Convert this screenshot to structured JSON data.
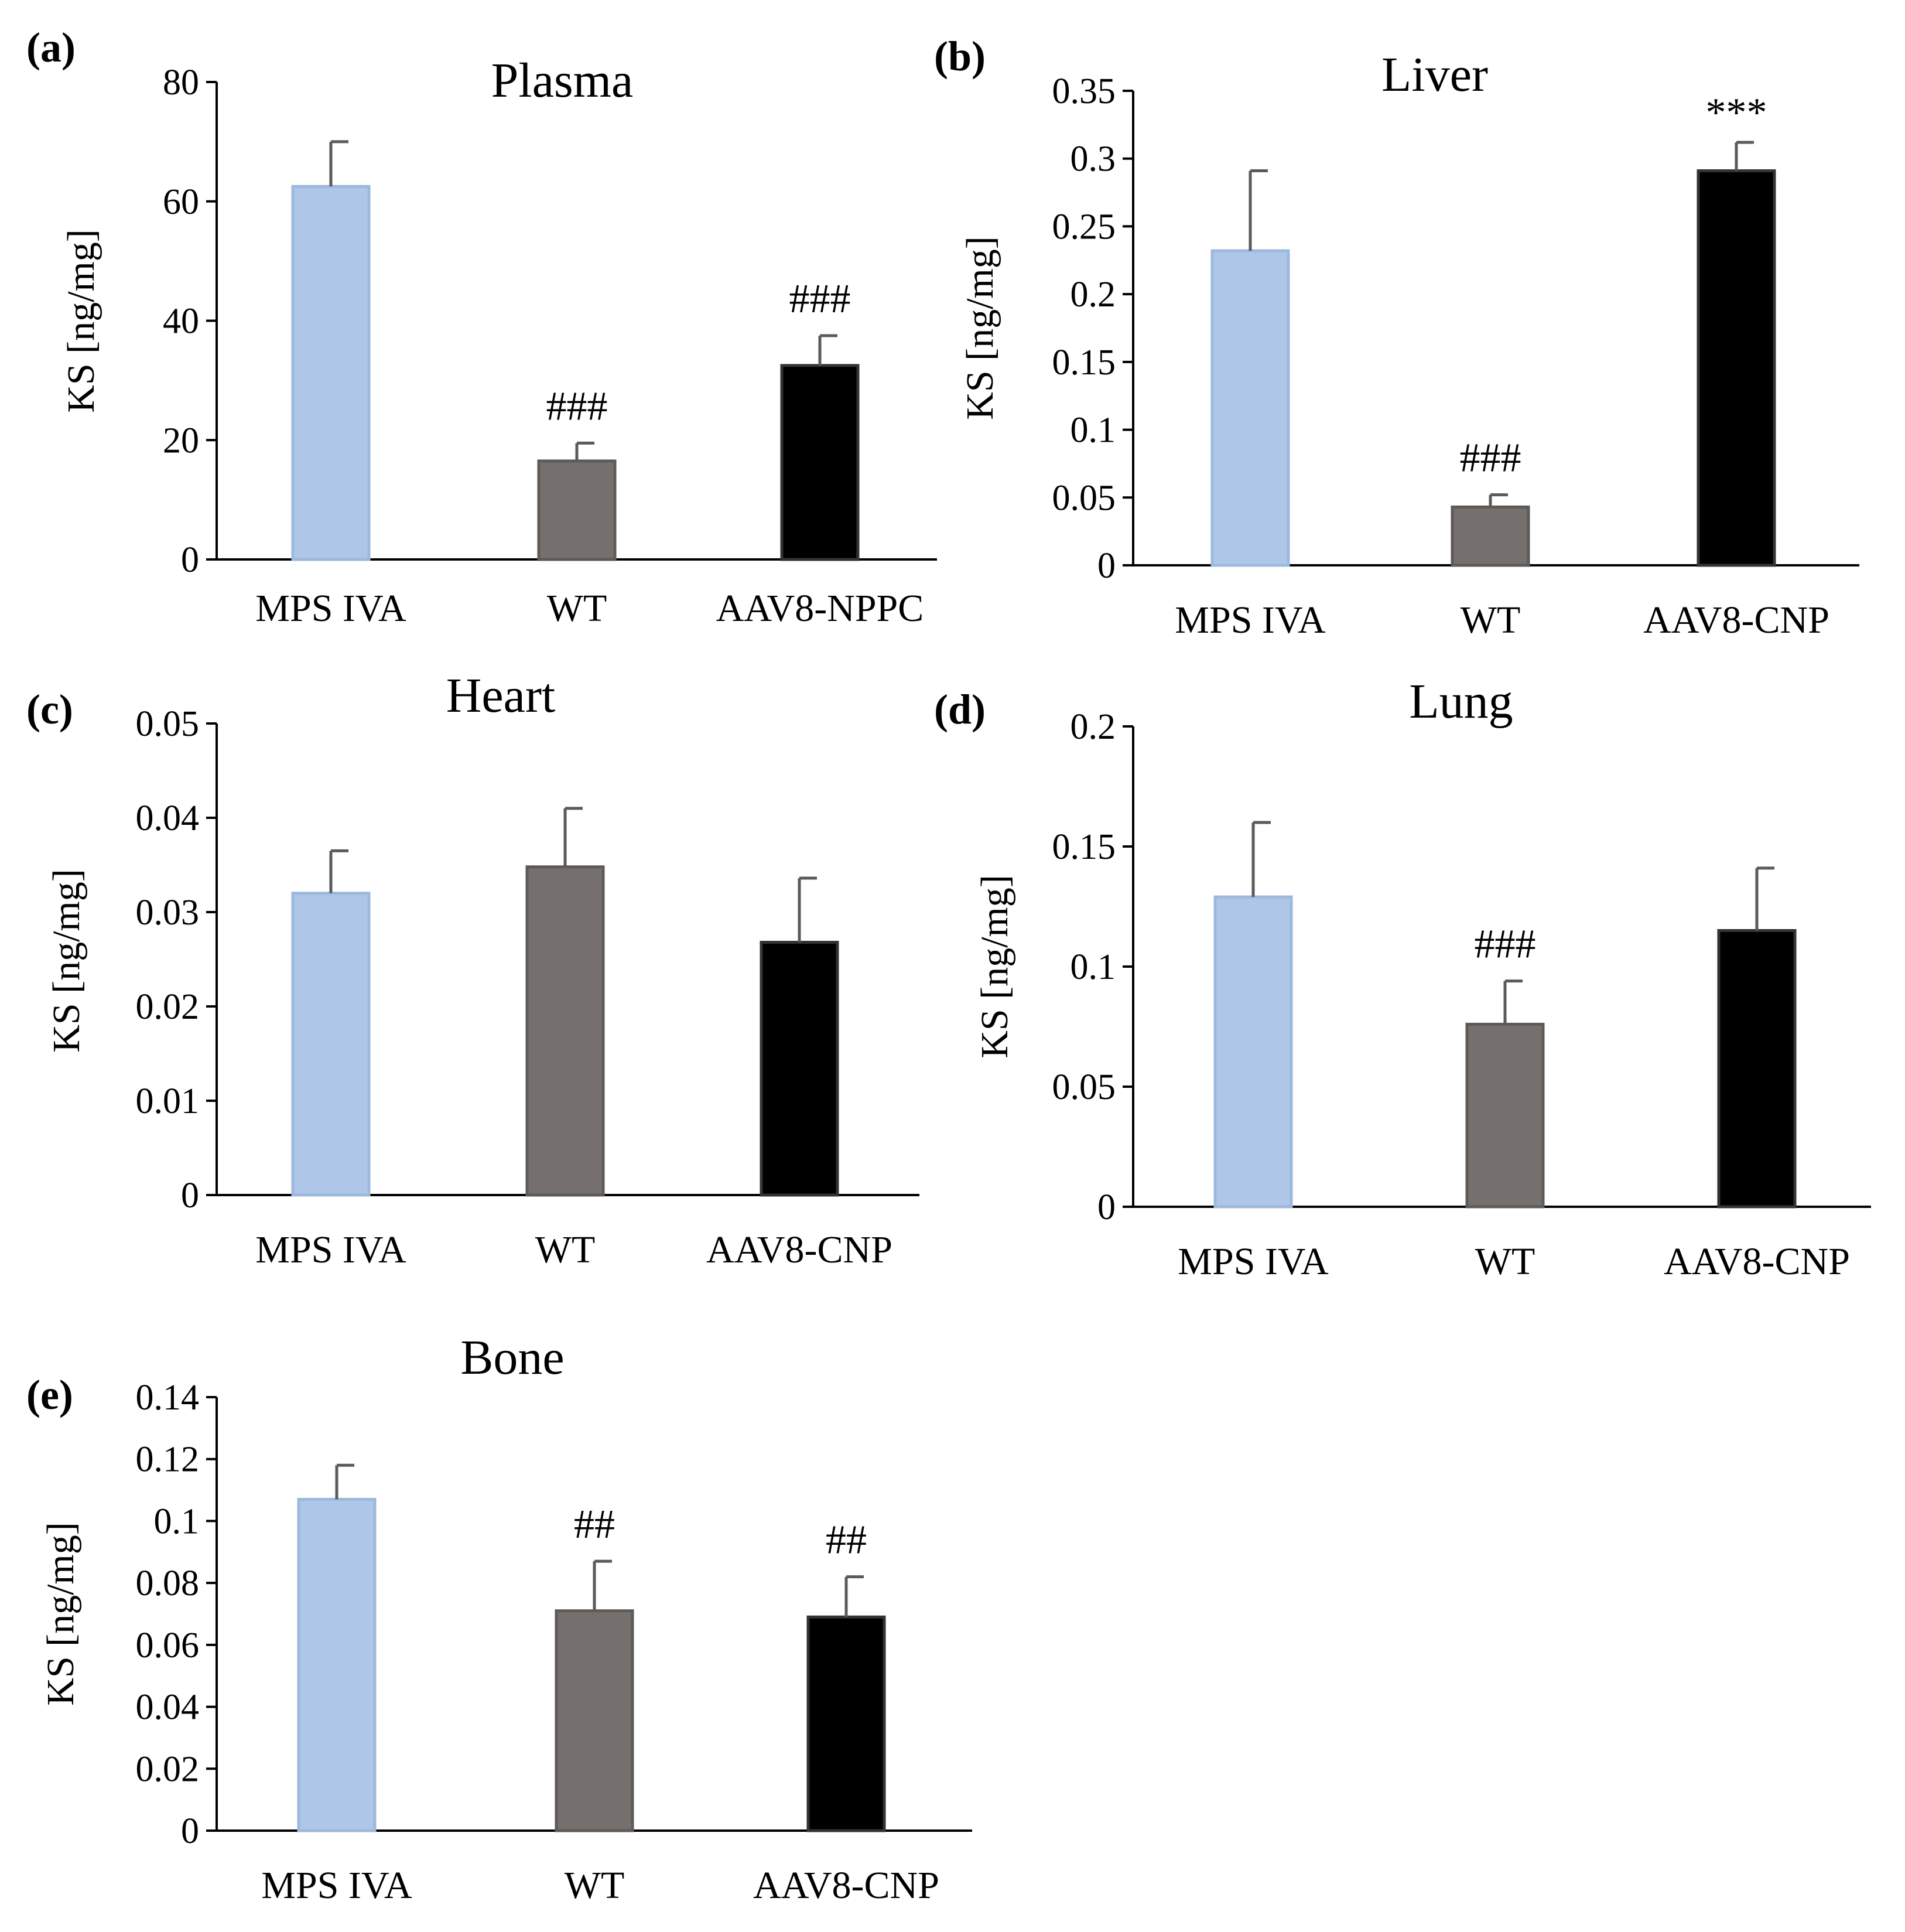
{
  "colors": {
    "mps": "#aec7e8",
    "wt": "#75706e",
    "aav": "#000000",
    "err": "#5a5a5a",
    "axis": "#000000"
  },
  "chart_data": [
    {
      "type": "bar",
      "label": "(a)",
      "title": "Plasma",
      "ylabel": "KS [ng/mg]",
      "ylim": [
        0,
        80
      ],
      "yticks": [
        "0",
        "20",
        "40",
        "60",
        "80"
      ],
      "categories": [
        "MPS IVA",
        "WT",
        "AAV8-NPPC"
      ],
      "values": [
        62.5,
        16.5,
        32.5
      ],
      "errors": [
        7.5,
        3,
        5
      ],
      "annotations": [
        "",
        "###",
        "###"
      ]
    },
    {
      "type": "bar",
      "label": "(b)",
      "title": "Liver",
      "ylabel": "KS [ng/mg]",
      "ylim": [
        0,
        0.35
      ],
      "yticks": [
        "0",
        "0.05",
        "0.1",
        "0.15",
        "0.2",
        "0.25",
        "0.3",
        "0.35"
      ],
      "categories": [
        "MPS IVA",
        "WT",
        "AAV8-CNP"
      ],
      "values": [
        0.232,
        0.043,
        0.291
      ],
      "errors": [
        0.059,
        0.009,
        0.021
      ],
      "annotations": [
        "",
        "###",
        "***"
      ]
    },
    {
      "type": "bar",
      "label": "(c)",
      "title": "Heart",
      "ylabel": "KS [ng/mg]",
      "ylim": [
        0,
        0.05
      ],
      "yticks": [
        "0",
        "0.01",
        "0.02",
        "0.03",
        "0.04",
        "0.05"
      ],
      "categories": [
        "MPS IVA",
        "WT",
        "AAV8-CNP"
      ],
      "values": [
        0.032,
        0.0348,
        0.0268
      ],
      "errors": [
        0.0045,
        0.0062,
        0.0068
      ],
      "annotations": [
        "",
        "",
        ""
      ]
    },
    {
      "type": "bar",
      "label": "(d)",
      "title": "Lung",
      "ylabel": "KS [ng/mg]",
      "ylim": [
        0,
        0.2
      ],
      "yticks": [
        "0",
        "0.05",
        "0.1",
        "0.15",
        "0.2"
      ],
      "categories": [
        "MPS IVA",
        "WT",
        "AAV8-CNP"
      ],
      "values": [
        0.129,
        0.076,
        0.115
      ],
      "errors": [
        0.031,
        0.018,
        0.026
      ],
      "annotations": [
        "",
        "###",
        ""
      ]
    },
    {
      "type": "bar",
      "label": "(e)",
      "title": "Bone",
      "ylabel": "KS [ng/mg]",
      "ylim": [
        0,
        0.14
      ],
      "yticks": [
        "0",
        "0.02",
        "0.04",
        "0.06",
        "0.08",
        "0.1",
        "0.12",
        "0.14"
      ],
      "categories": [
        "MPS IVA",
        "WT",
        "AAV8-CNP"
      ],
      "values": [
        0.107,
        0.071,
        0.069
      ],
      "errors": [
        0.011,
        0.016,
        0.013
      ],
      "annotations": [
        "",
        "##",
        "##"
      ]
    }
  ]
}
